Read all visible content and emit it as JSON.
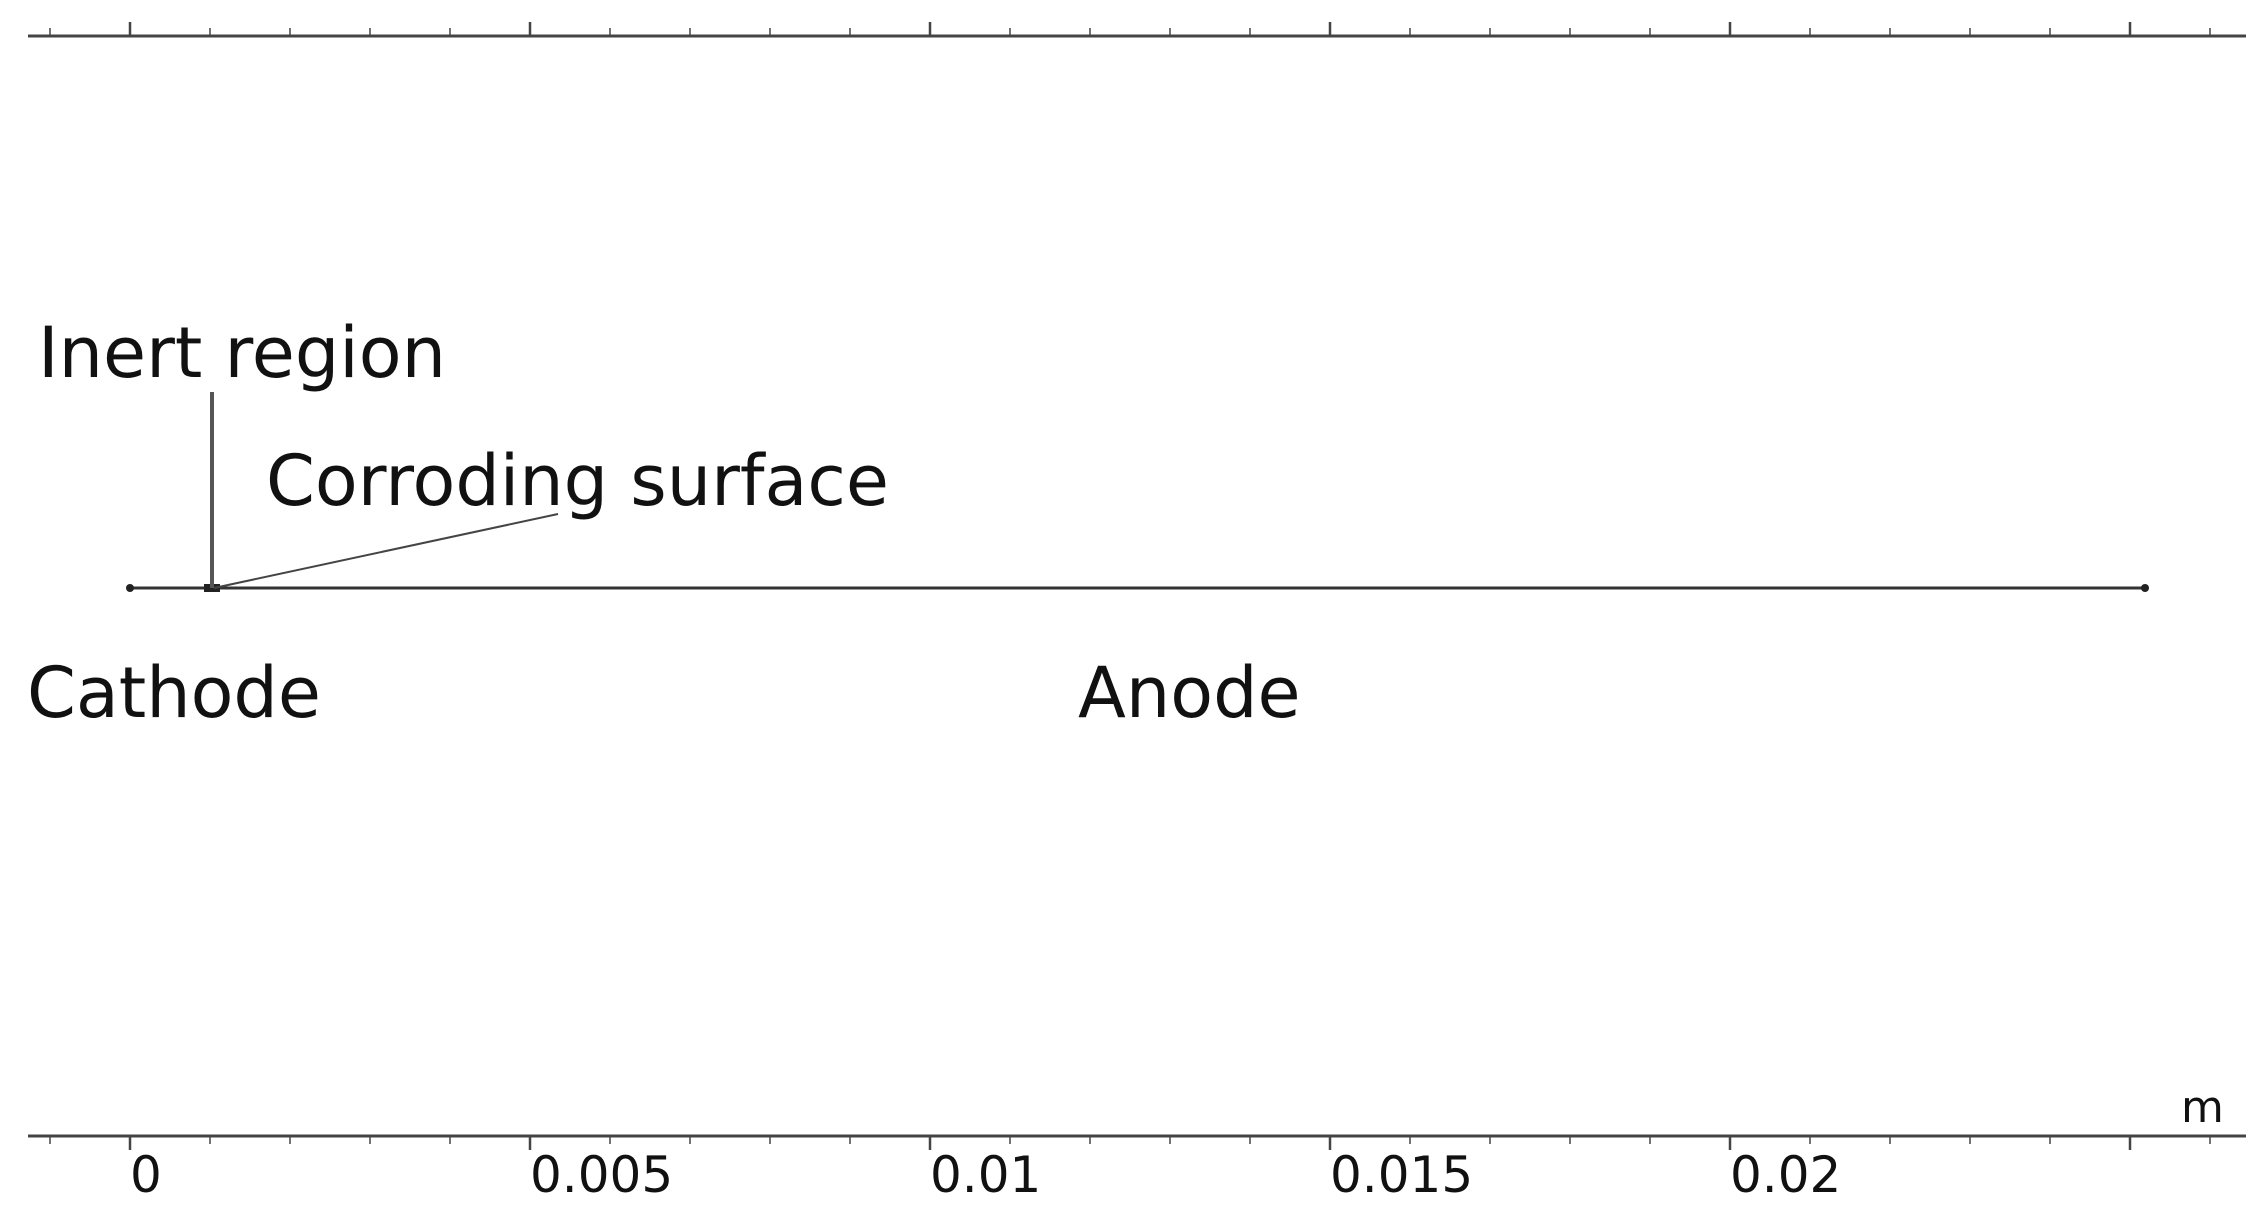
{
  "diagram": {
    "labels": {
      "inert_region": "Inert region",
      "corroding_surface": "Corroding surface",
      "cathode": "Cathode",
      "anode": "Anode"
    },
    "axis": {
      "unit": "m",
      "tick_labels": [
        "0",
        "0.005",
        "0.01",
        "0.015",
        "0.02"
      ]
    },
    "colors": {
      "line": "#333333",
      "text": "#111111",
      "background": "#ffffff"
    }
  }
}
